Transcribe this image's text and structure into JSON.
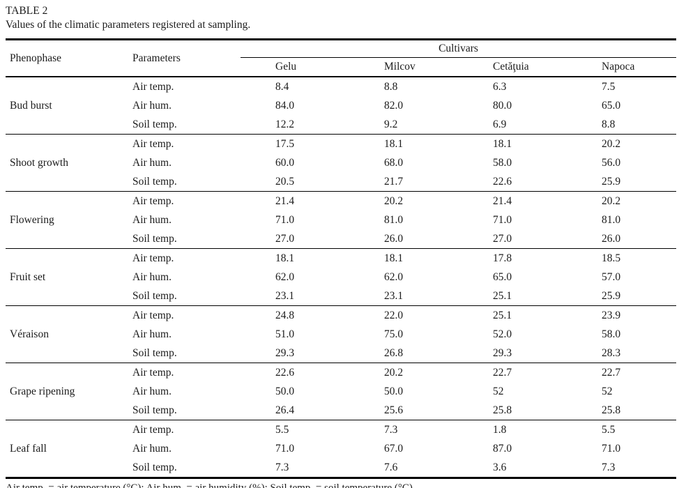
{
  "page": {
    "title": "TABLE 2",
    "caption": "Values of the climatic parameters registered at sampling.",
    "footnote": "Air temp. = air temperature (°C); Air hum. = air humidity (%); Soil temp. = soil temperature (°C)"
  },
  "table": {
    "headers": {
      "phenophase": "Phenophase",
      "parameters": "Parameters",
      "cultivars_group": "Cultivars",
      "cultivars": [
        "Gelu",
        "Milcov",
        "Cetăţuia",
        "Napoca"
      ]
    },
    "groups": [
      {
        "phenophase": "Bud burst",
        "rows": [
          {
            "parameter": "Air temp.",
            "values": [
              "8.4",
              "8.8",
              "6.3",
              "7.5"
            ]
          },
          {
            "parameter": "Air hum.",
            "values": [
              "84.0",
              "82.0",
              "80.0",
              "65.0"
            ]
          },
          {
            "parameter": "Soil temp.",
            "values": [
              "12.2",
              "9.2",
              "6.9",
              "8.8"
            ]
          }
        ]
      },
      {
        "phenophase": "Shoot growth",
        "rows": [
          {
            "parameter": "Air temp.",
            "values": [
              "17.5",
              "18.1",
              "18.1",
              "20.2"
            ]
          },
          {
            "parameter": "Air hum.",
            "values": [
              "60.0",
              "68.0",
              "58.0",
              "56.0"
            ]
          },
          {
            "parameter": "Soil temp.",
            "values": [
              "20.5",
              "21.7",
              "22.6",
              "25.9"
            ]
          }
        ]
      },
      {
        "phenophase": "Flowering",
        "rows": [
          {
            "parameter": "Air temp.",
            "values": [
              "21.4",
              "20.2",
              "21.4",
              "20.2"
            ]
          },
          {
            "parameter": "Air hum.",
            "values": [
              "71.0",
              "81.0",
              "71.0",
              "81.0"
            ]
          },
          {
            "parameter": "Soil temp.",
            "values": [
              "27.0",
              "26.0",
              "27.0",
              "26.0"
            ]
          }
        ]
      },
      {
        "phenophase": "Fruit set",
        "rows": [
          {
            "parameter": "Air temp.",
            "values": [
              "18.1",
              "18.1",
              "17.8",
              "18.5"
            ]
          },
          {
            "parameter": "Air hum.",
            "values": [
              "62.0",
              "62.0",
              "65.0",
              "57.0"
            ]
          },
          {
            "parameter": "Soil temp.",
            "values": [
              "23.1",
              "23.1",
              "25.1",
              "25.9"
            ]
          }
        ]
      },
      {
        "phenophase": "Véraison",
        "rows": [
          {
            "parameter": "Air temp.",
            "values": [
              "24.8",
              "22.0",
              "25.1",
              "23.9"
            ]
          },
          {
            "parameter": "Air hum.",
            "values": [
              "51.0",
              "75.0",
              "52.0",
              "58.0"
            ]
          },
          {
            "parameter": "Soil temp.",
            "values": [
              "29.3",
              "26.8",
              "29.3",
              "28.3"
            ]
          }
        ]
      },
      {
        "phenophase": "Grape ripening",
        "rows": [
          {
            "parameter": "Air temp.",
            "values": [
              "22.6",
              "20.2",
              "22.7",
              "22.7"
            ]
          },
          {
            "parameter": "Air hum.",
            "values": [
              "50.0",
              "50.0",
              "52",
              "52"
            ]
          },
          {
            "parameter": "Soil temp.",
            "values": [
              "26.4",
              "25.6",
              "25.8",
              "25.8"
            ]
          }
        ]
      },
      {
        "phenophase": "Leaf fall",
        "rows": [
          {
            "parameter": "Air temp.",
            "values": [
              "5.5",
              "7.3",
              "1.8",
              "5.5"
            ]
          },
          {
            "parameter": "Air hum.",
            "values": [
              "71.0",
              "67.0",
              "87.0",
              "71.0"
            ]
          },
          {
            "parameter": "Soil temp.",
            "values": [
              "7.3",
              "7.6",
              "3.6",
              "7.3"
            ]
          }
        ]
      }
    ]
  }
}
